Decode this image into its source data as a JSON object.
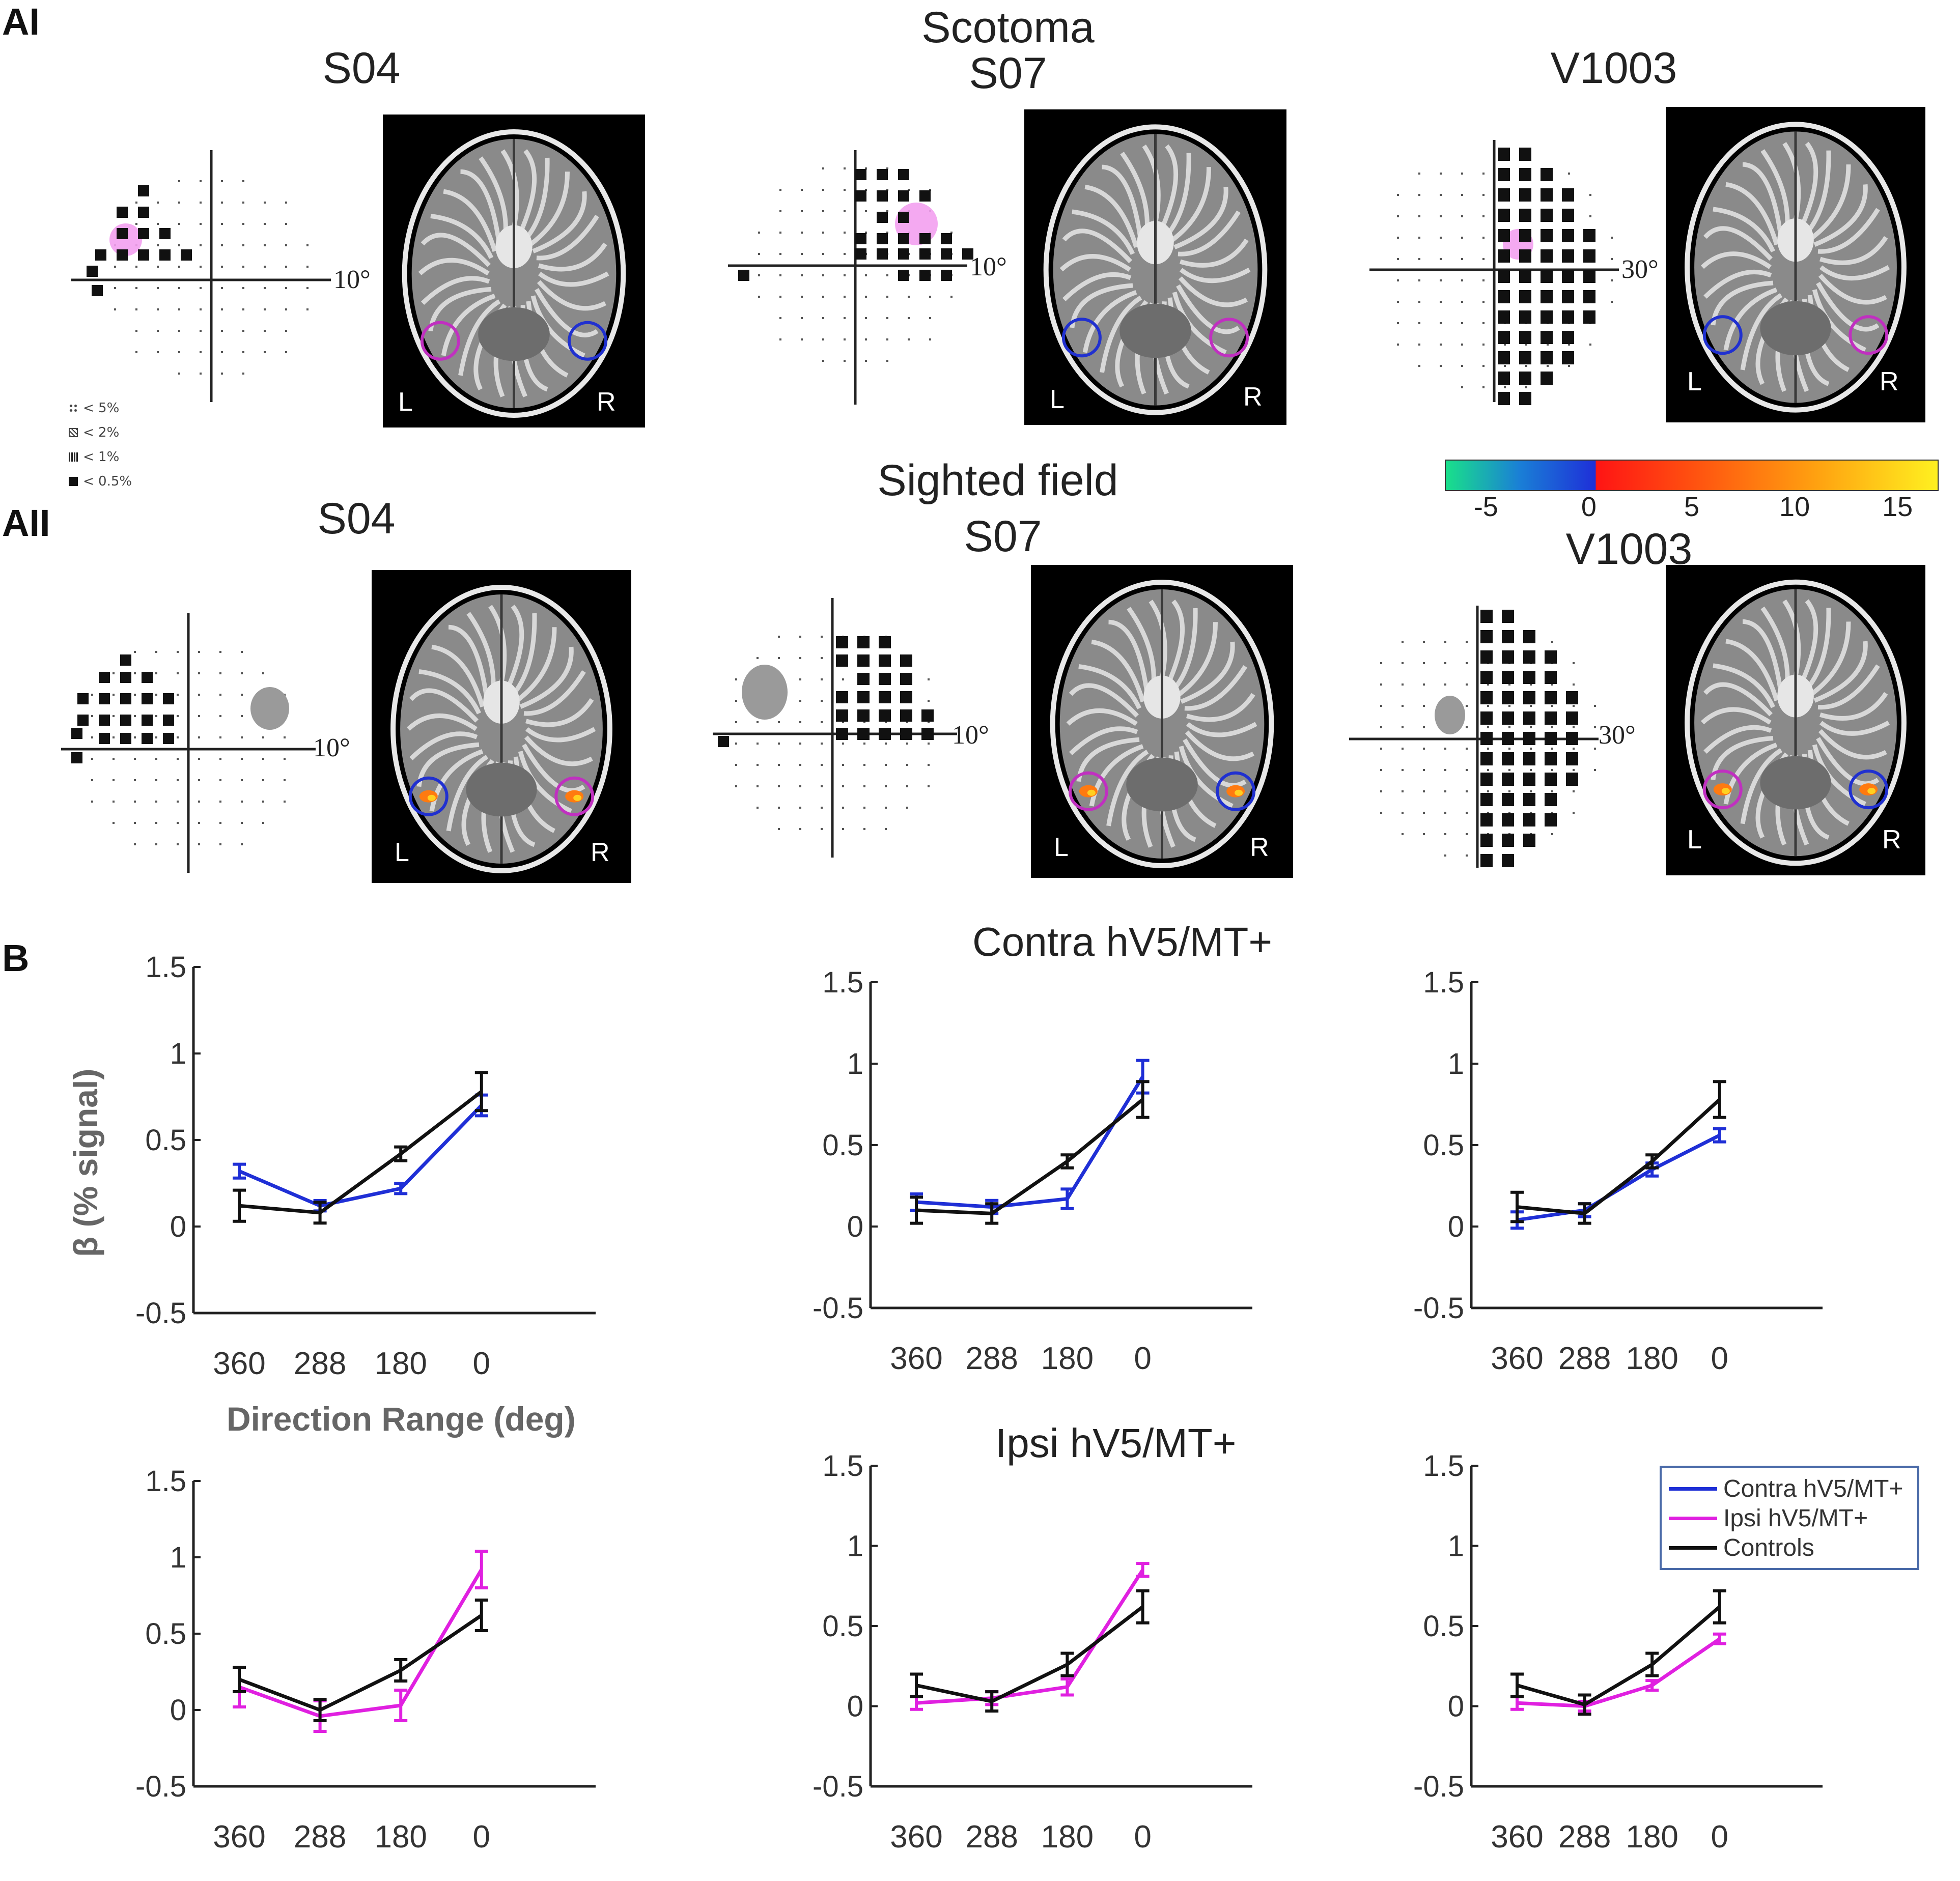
{
  "panels": {
    "a1": "AI",
    "a2": "AII",
    "b": "B"
  },
  "headings": {
    "row1": {
      "middle_top": "Scotoma",
      "left": "S04",
      "middle": "S07",
      "right": "V1003"
    },
    "row2": {
      "middle_top": "Sighted field",
      "left": "S04",
      "middle": "S07",
      "right": "V1003"
    }
  },
  "field_labels": {
    "ten": "10°",
    "thirty": "30°"
  },
  "brain_sides": {
    "left": "L",
    "right": "R"
  },
  "significance_legend": [
    {
      "symbol": "::",
      "label": "< 5%"
    },
    {
      "symbol": "hatch",
      "label": "< 2%"
    },
    {
      "symbol": "dense",
      "label": "< 1%"
    },
    {
      "symbol": "solid",
      "label": "< 0.5%"
    }
  ],
  "colorbar": {
    "ticks": [
      "-5",
      "0",
      "5",
      "10",
      "15"
    ],
    "range": [
      -7,
      17
    ]
  },
  "colors": {
    "contra": "#1f2fd6",
    "ipsi": "#e020e0",
    "controls": "#111111",
    "roi_ipsi": "#c030c0",
    "roi_contra": "#2030d0"
  },
  "chart_titles": {
    "contra": "Contra hV5/MT+",
    "ipsi": "Ipsi hV5/MT+"
  },
  "axis_labels": {
    "y": "β (% signal)",
    "x": "Direction Range (deg)"
  },
  "chart_legend": [
    {
      "name": "Contra hV5/MT+",
      "key": "contra"
    },
    {
      "name": "Ipsi hV5/MT+",
      "key": "ipsi"
    },
    {
      "name": "Controls",
      "key": "controls"
    }
  ],
  "chart_data": [
    {
      "type": "line",
      "panel": "B-row1-S04",
      "categories": [
        "360",
        "288",
        "180",
        "0"
      ],
      "ylim": [
        -0.5,
        1.5
      ],
      "yticks": [
        "-0.5",
        "0",
        "0.5",
        "1",
        "1.5"
      ],
      "series": [
        {
          "name": "Contra hV5/MT+",
          "key": "contra",
          "values": [
            0.32,
            0.12,
            0.22,
            0.7
          ],
          "err": [
            0.04,
            0.03,
            0.03,
            0.06
          ]
        },
        {
          "name": "Controls",
          "key": "controls",
          "values": [
            0.12,
            0.08,
            0.42,
            0.78
          ],
          "err": [
            0.09,
            0.06,
            0.04,
            0.11
          ]
        }
      ]
    },
    {
      "type": "line",
      "panel": "B-row1-S07",
      "categories": [
        "360",
        "288",
        "180",
        "0"
      ],
      "ylim": [
        -0.5,
        1.5
      ],
      "yticks": [
        "-0.5",
        "0",
        "0.5",
        "1",
        "1.5"
      ],
      "series": [
        {
          "name": "Contra hV5/MT+",
          "key": "contra",
          "values": [
            0.15,
            0.12,
            0.17,
            0.92
          ],
          "err": [
            0.05,
            0.04,
            0.06,
            0.1
          ]
        },
        {
          "name": "Controls",
          "key": "controls",
          "values": [
            0.1,
            0.08,
            0.4,
            0.78
          ],
          "err": [
            0.08,
            0.06,
            0.04,
            0.11
          ]
        }
      ]
    },
    {
      "type": "line",
      "panel": "B-row1-V1003",
      "categories": [
        "360",
        "288",
        "180",
        "0"
      ],
      "ylim": [
        -0.5,
        1.5
      ],
      "yticks": [
        "-0.5",
        "0",
        "0.5",
        "1",
        "1.5"
      ],
      "series": [
        {
          "name": "Contra hV5/MT+",
          "key": "contra",
          "values": [
            0.04,
            0.1,
            0.35,
            0.56
          ],
          "err": [
            0.05,
            0.04,
            0.04,
            0.04
          ]
        },
        {
          "name": "Controls",
          "key": "controls",
          "values": [
            0.12,
            0.08,
            0.4,
            0.78
          ],
          "err": [
            0.09,
            0.06,
            0.04,
            0.11
          ]
        }
      ]
    },
    {
      "type": "line",
      "panel": "B-row2-S04",
      "categories": [
        "360",
        "288",
        "180",
        "0"
      ],
      "ylim": [
        -0.5,
        1.5
      ],
      "yticks": [
        "-0.5",
        "0",
        "0.5",
        "1",
        "1.5"
      ],
      "series": [
        {
          "name": "Ipsi hV5/MT+",
          "key": "ipsi",
          "values": [
            0.15,
            -0.04,
            0.03,
            0.92
          ],
          "err": [
            0.13,
            0.1,
            0.1,
            0.12
          ]
        },
        {
          "name": "Controls",
          "key": "controls",
          "values": [
            0.2,
            0.0,
            0.26,
            0.62
          ],
          "err": [
            0.08,
            0.07,
            0.07,
            0.1
          ]
        }
      ]
    },
    {
      "type": "line",
      "panel": "B-row2-S07",
      "categories": [
        "360",
        "288",
        "180",
        "0"
      ],
      "ylim": [
        -0.5,
        1.5
      ],
      "yticks": [
        "-0.5",
        "0",
        "0.5",
        "1",
        "1.5"
      ],
      "series": [
        {
          "name": "Ipsi hV5/MT+",
          "key": "ipsi",
          "values": [
            0.02,
            0.05,
            0.12,
            0.85
          ],
          "err": [
            0.04,
            0.04,
            0.05,
            0.04
          ]
        },
        {
          "name": "Controls",
          "key": "controls",
          "values": [
            0.13,
            0.03,
            0.26,
            0.62
          ],
          "err": [
            0.07,
            0.06,
            0.07,
            0.1
          ]
        }
      ]
    },
    {
      "type": "line",
      "panel": "B-row2-V1003",
      "categories": [
        "360",
        "288",
        "180",
        "0"
      ],
      "ylim": [
        -0.5,
        1.5
      ],
      "yticks": [
        "-0.5",
        "0",
        "0.5",
        "1",
        "1.5"
      ],
      "series": [
        {
          "name": "Ipsi hV5/MT+",
          "key": "ipsi",
          "values": [
            0.02,
            0.0,
            0.13,
            0.42
          ],
          "err": [
            0.04,
            0.03,
            0.03,
            0.03
          ]
        },
        {
          "name": "Controls",
          "key": "controls",
          "values": [
            0.13,
            0.01,
            0.26,
            0.62
          ],
          "err": [
            0.07,
            0.06,
            0.07,
            0.1
          ]
        }
      ]
    }
  ]
}
